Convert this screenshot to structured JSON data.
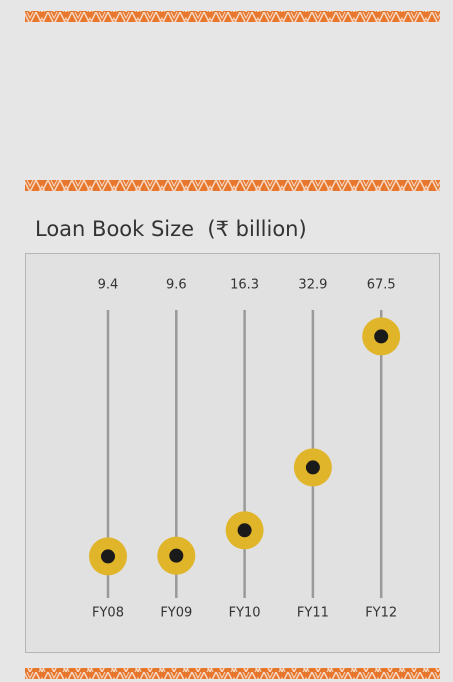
{
  "chart_data": {
    "type": "dot-stem",
    "title": "Loan Book Size  (₹ billion)",
    "categories": [
      "FY08",
      "FY09",
      "FY10",
      "FY11",
      "FY12"
    ],
    "values": [
      9.4,
      9.6,
      16.3,
      32.9,
      67.5
    ],
    "color": "#e0b52a",
    "ylim": [
      0,
      75
    ]
  }
}
